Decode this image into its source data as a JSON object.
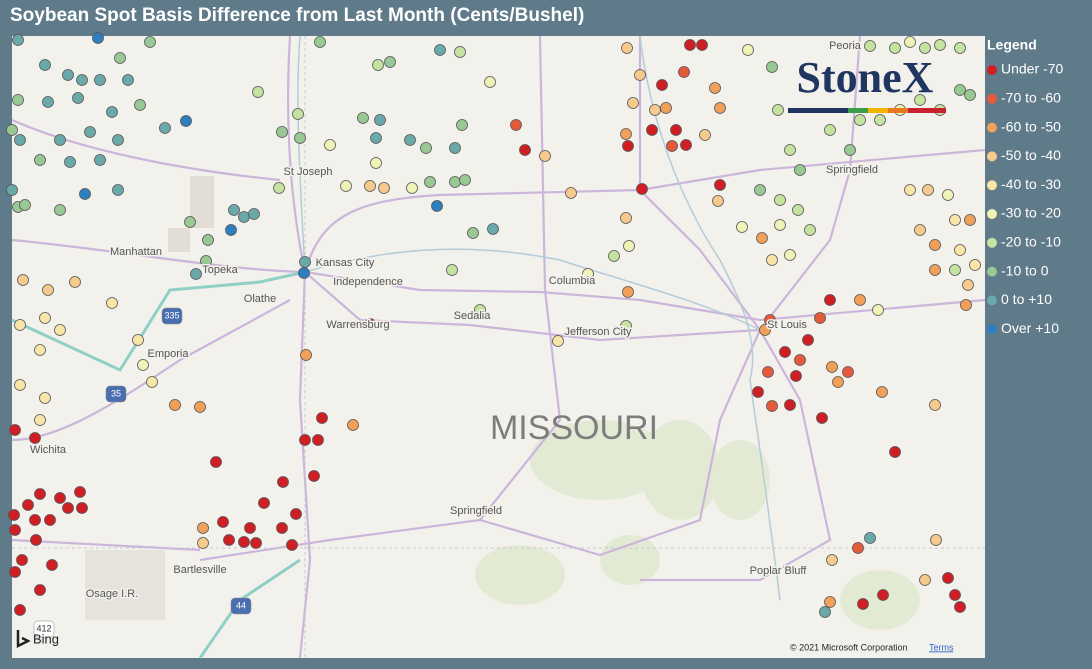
{
  "title": "Soybean Spot Basis Difference from Last Month (Cents/Bushel)",
  "legend": {
    "title": "Legend",
    "items": [
      {
        "label": "Under -70",
        "color": "#cf1f25"
      },
      {
        "label": "-70 to -60",
        "color": "#e65a3c"
      },
      {
        "label": "-60 to -50",
        "color": "#f0a058"
      },
      {
        "label": "-50 to -40",
        "color": "#f6c98c"
      },
      {
        "label": "-40 to -30",
        "color": "#f7e6a8"
      },
      {
        "label": "-30 to -20",
        "color": "#eef3b8"
      },
      {
        "label": "-20 to -10",
        "color": "#c4e2a0"
      },
      {
        "label": "-10 to 0",
        "color": "#98c995"
      },
      {
        "label": "0 to +10",
        "color": "#6aa9aa"
      },
      {
        "label": "Over +10",
        "color": "#2f7fc0"
      }
    ]
  },
  "map": {
    "state_label": "MISSOURI",
    "places": [
      "Peoria",
      "St Joseph",
      "Springfield",
      "Manhattan",
      "Topeka",
      "Kansas City",
      "Independence",
      "Olathe",
      "Columbia",
      "Sedalia",
      "Warrensburg",
      "Jefferson City",
      "St Louis",
      "Emporia",
      "Wichita",
      "Springfield",
      "Bartlesville",
      "Osage I.R.",
      "Poplar Bluff"
    ],
    "shields": [
      "335",
      "35",
      "44",
      "412"
    ]
  },
  "logo": "StoneX",
  "attribution": {
    "bing": "Bing",
    "copyright": "© 2021 Microsoft Corporation",
    "terms": "Terms"
  }
}
